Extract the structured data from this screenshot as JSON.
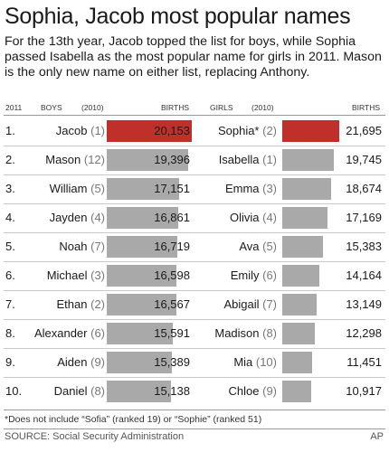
{
  "header": {
    "title": "Sophia, Jacob most popular names",
    "subtitle": "For the 13th year, Jacob topped the list for boys, while Sophia passed Isabella as the most popular name for girls in 2011. Mason is the only new name on either list, replacing Anthony."
  },
  "columns": {
    "year": "2011",
    "boys": "BOYS",
    "boys_prev": "(2010)",
    "boys_births": "BIRTHS",
    "girls": "GIRLS",
    "girls_prev": "(2010)",
    "girls_births": "BIRTHS"
  },
  "footer": {
    "footnote": "*Does not include “Sofia” (ranked 19) or “Sophie” (ranked 51)",
    "source": "SOURCE: Social Security Administration",
    "credit": "AP"
  },
  "colors": {
    "highlight": "#c0302b",
    "bar": "#a9a9a9",
    "rule": "#999999"
  },
  "chart_data": {
    "type": "table",
    "rows": [
      {
        "rank": "1.",
        "boy": "Jacob",
        "boy_prev": "(1)",
        "boy_births": 20153,
        "boy_births_label": "20,153",
        "girl": "Sophia*",
        "girl_prev": "(2)",
        "girl_births": 21695,
        "girl_births_label": "21,695"
      },
      {
        "rank": "2.",
        "boy": "Mason",
        "boy_prev": "(12)",
        "boy_births": 19396,
        "boy_births_label": "19,396",
        "girl": "Isabella",
        "girl_prev": "(1)",
        "girl_births": 19745,
        "girl_births_label": "19,745"
      },
      {
        "rank": "3.",
        "boy": "William",
        "boy_prev": "(5)",
        "boy_births": 17151,
        "boy_births_label": "17,151",
        "girl": "Emma",
        "girl_prev": "(3)",
        "girl_births": 18674,
        "girl_births_label": "18,674"
      },
      {
        "rank": "4.",
        "boy": "Jayden",
        "boy_prev": "(4)",
        "boy_births": 16861,
        "boy_births_label": "16,861",
        "girl": "Olivia",
        "girl_prev": "(4)",
        "girl_births": 17169,
        "girl_births_label": "17,169"
      },
      {
        "rank": "5.",
        "boy": "Noah",
        "boy_prev": "(7)",
        "boy_births": 16719,
        "boy_births_label": "16,719",
        "girl": "Ava",
        "girl_prev": "(5)",
        "girl_births": 15383,
        "girl_births_label": "15,383"
      },
      {
        "rank": "6.",
        "boy": "Michael",
        "boy_prev": "(3)",
        "boy_births": 16598,
        "boy_births_label": "16,598",
        "girl": "Emily",
        "girl_prev": "(6)",
        "girl_births": 14164,
        "girl_births_label": "14,164"
      },
      {
        "rank": "7.",
        "boy": "Ethan",
        "boy_prev": "(2)",
        "boy_births": 16567,
        "boy_births_label": "16,567",
        "girl": "Abigail",
        "girl_prev": "(7)",
        "girl_births": 13149,
        "girl_births_label": "13,149"
      },
      {
        "rank": "8.",
        "boy": "Alexander",
        "boy_prev": "(6)",
        "boy_births": 15591,
        "boy_births_label": "15,591",
        "girl": "Madison",
        "girl_prev": "(8)",
        "girl_births": 12298,
        "girl_births_label": "12,298"
      },
      {
        "rank": "9.",
        "boy": "Aiden",
        "boy_prev": "(9)",
        "boy_births": 15389,
        "boy_births_label": "15,389",
        "girl": "Mia",
        "girl_prev": "(10)",
        "girl_births": 11451,
        "girl_births_label": "11,451"
      },
      {
        "rank": "10.",
        "boy": "Daniel",
        "boy_prev": "(8)",
        "boy_births": 15138,
        "boy_births_label": "15,138",
        "girl": "Chloe",
        "girl_prev": "(9)",
        "girl_births": 10917,
        "girl_births_label": "10,917"
      }
    ]
  }
}
